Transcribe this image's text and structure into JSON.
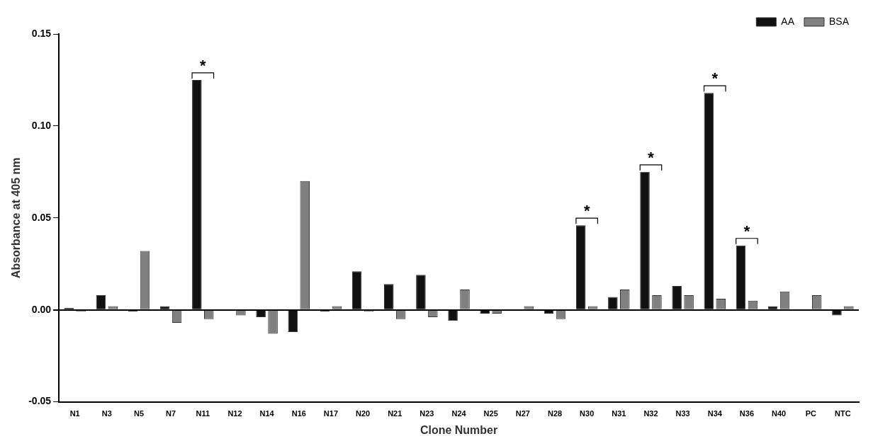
{
  "chart_data": {
    "type": "bar",
    "x_label": "Clone Number",
    "y_label": "Absorbance at 405 nm",
    "categories": [
      "N1",
      "N3",
      "N5",
      "N7",
      "N11",
      "N12",
      "N14",
      "N16",
      "N17",
      "N20",
      "N21",
      "N23",
      "N24",
      "N25",
      "N27",
      "N28",
      "N30",
      "N31",
      "N32",
      "N33",
      "N34",
      "N36",
      "N40",
      "PC",
      "NTC"
    ],
    "series": [
      {
        "name": "AA",
        "color": "#111111",
        "values": [
          0.001,
          0.008,
          -0.001,
          0.002,
          0.125,
          0,
          -0.004,
          -0.012,
          -0.001,
          0.021,
          0.014,
          0.019,
          -0.006,
          -0.002,
          0,
          -0.002,
          0.046,
          0.007,
          0.075,
          0.013,
          0.118,
          0.035,
          0.002,
          0,
          -0.003
        ]
      },
      {
        "name": "BSA",
        "color": "#808080",
        "values": [
          -0.001,
          0.002,
          0.032,
          -0.007,
          -0.005,
          -0.003,
          -0.013,
          0.07,
          0.002,
          -0.001,
          -0.005,
          -0.004,
          0.011,
          -0.002,
          0.002,
          -0.005,
          0.002,
          0.011,
          0.008,
          0.008,
          0.006,
          0.005,
          0.01,
          0.008,
          0.002
        ]
      }
    ],
    "ylim": [
      -0.05,
      0.15
    ],
    "yticks": [
      -0.05,
      {
        "value": 0,
        "label": "0.00"
      },
      0.05,
      {
        "value": 0.1,
        "label": "0.10"
      },
      0.15
    ],
    "annotations": [
      {
        "category": "N11",
        "text": "*"
      },
      {
        "category": "N30",
        "text": "*"
      },
      {
        "category": "N32",
        "text": "*"
      },
      {
        "category": "N34",
        "text": "*"
      },
      {
        "category": "N36",
        "text": "*"
      }
    ],
    "grid": false,
    "legend": "top-right"
  }
}
